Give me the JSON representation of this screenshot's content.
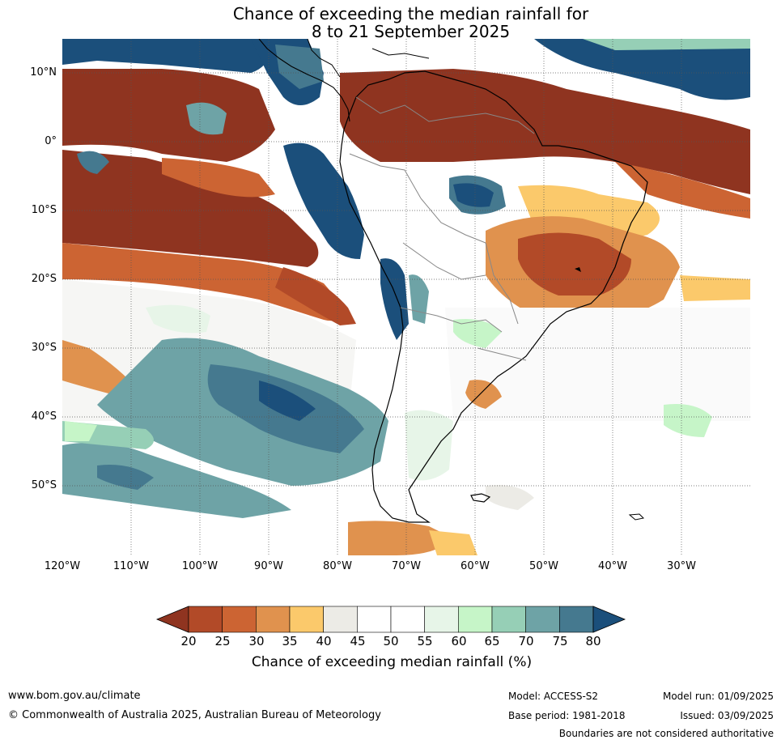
{
  "title": {
    "line1": "Chance of exceeding the median rainfall for",
    "line2": "8 to 21 September 2025"
  },
  "map": {
    "lat_labels": [
      "10°N",
      "0°",
      "10°S",
      "20°S",
      "30°S",
      "40°S",
      "50°S"
    ],
    "lon_labels": [
      "120°W",
      "110°W",
      "100°W",
      "90°W",
      "80°W",
      "70°W",
      "60°W",
      "50°W",
      "40°W",
      "30°W"
    ],
    "lat_range": [
      -60,
      15
    ],
    "lon_range": [
      -120,
      -20
    ],
    "grid": true
  },
  "colorbar": {
    "ticks": [
      "20",
      "25",
      "30",
      "35",
      "40",
      "45",
      "50",
      "55",
      "60",
      "65",
      "70",
      "75",
      "80"
    ],
    "colors": [
      "#8f3420",
      "#b24a28",
      "#cc6433",
      "#e0924e",
      "#fbc96b",
      "#ecebe6",
      "#ffffff",
      "#ffffff",
      "#e7f5e8",
      "#c6f5c8",
      "#96cfb6",
      "#6ea3a6",
      "#45798f",
      "#1b4f7b"
    ],
    "label": "Chance of exceeding median rainfall (%)"
  },
  "footer": {
    "website": "www.bom.gov.au/climate",
    "copyright": "© Commonwealth of Australia 2025, Australian Bureau of Meteorology",
    "model": "Model: ACCESS-S2",
    "model_run": "Model run: 01/09/2025",
    "base_period": "Base period: 1981-2018",
    "issued": "Issued: 03/09/2025",
    "disclaimer": "Boundaries are not considered authoritative"
  }
}
